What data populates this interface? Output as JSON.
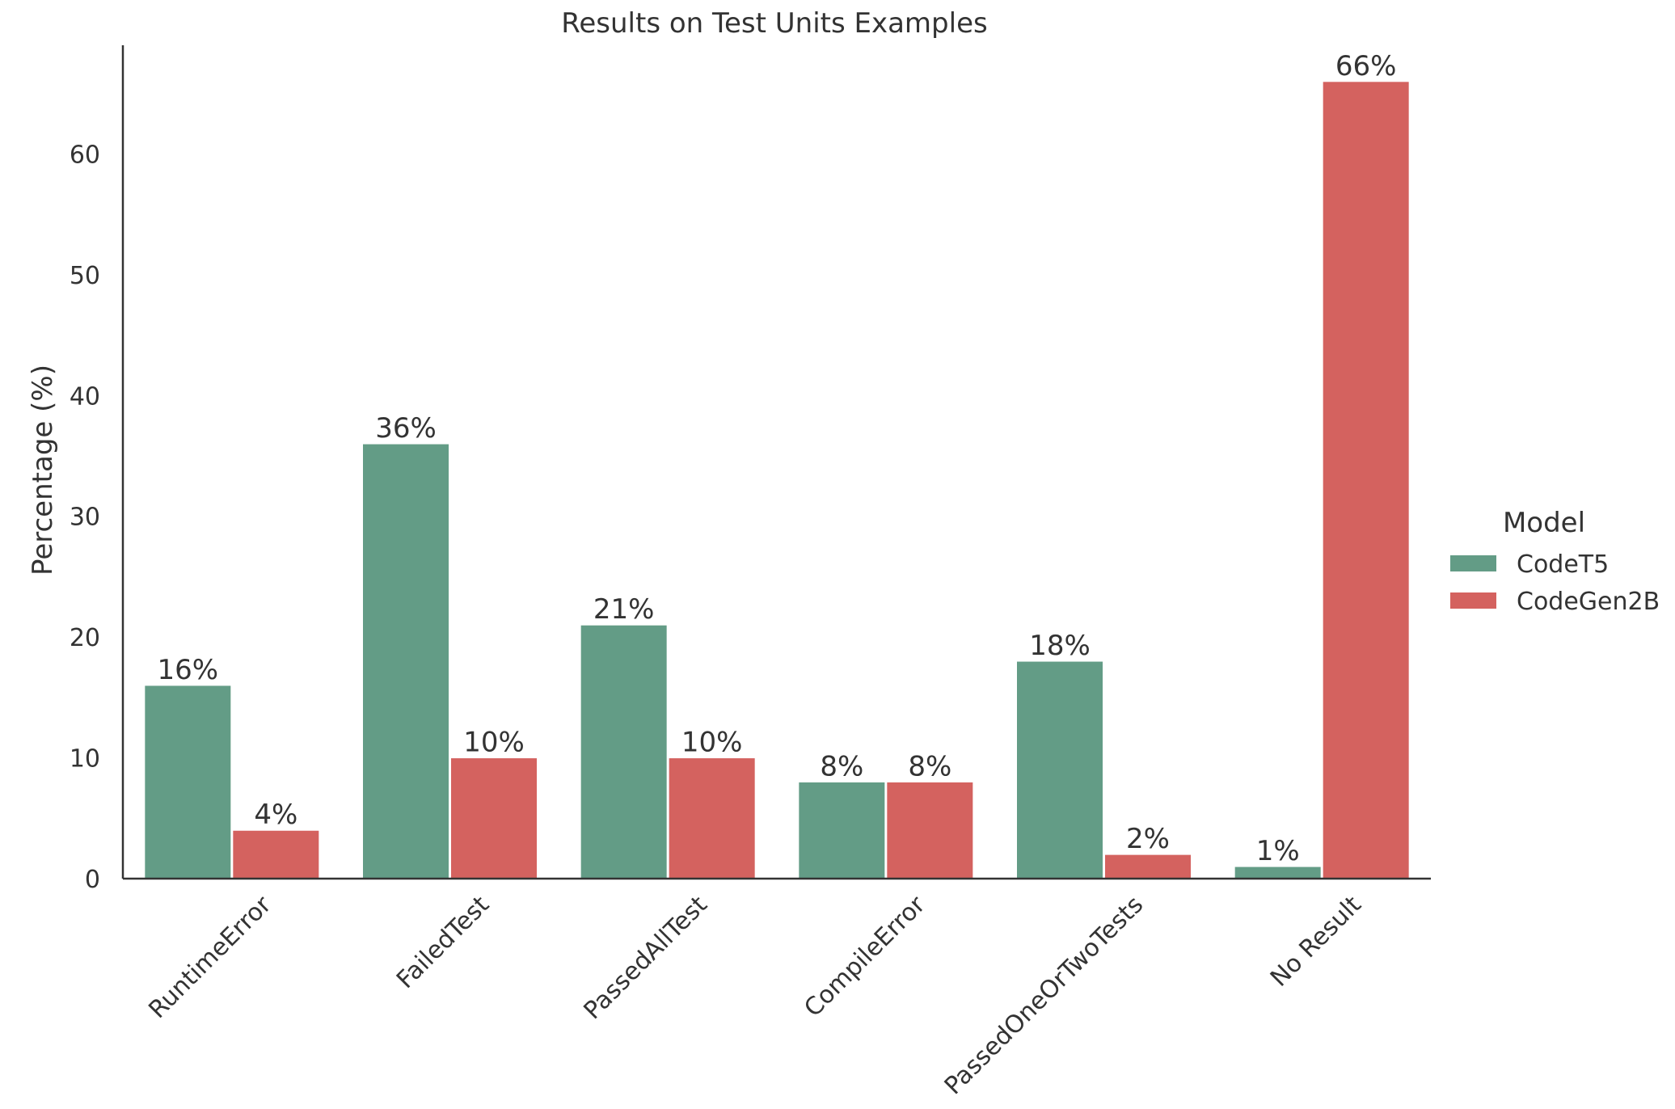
{
  "chart_data": {
    "type": "bar",
    "title": "Results on Test Units Examples",
    "xlabel": "",
    "ylabel": "Percentage (%)",
    "categories": [
      "RuntimeError",
      "FailedTest",
      "PassedAllTest",
      "CompileError",
      "PassedOneOrTwoTests",
      "No Result"
    ],
    "series": [
      {
        "name": "CodeT5",
        "values": [
          16,
          36,
          21,
          8,
          18,
          1
        ],
        "labels": [
          "16%",
          "36%",
          "21%",
          "8%",
          "18%",
          "1%"
        ],
        "color": "#639c86"
      },
      {
        "name": "CodeGen2B",
        "values": [
          4,
          10,
          10,
          8,
          2,
          66
        ],
        "labels": [
          "4%",
          "10%",
          "10%",
          "8%",
          "2%",
          "66%"
        ],
        "color": "#d4625f"
      }
    ],
    "yticks": [
      0,
      10,
      20,
      30,
      40,
      50,
      60
    ],
    "ylim": [
      0,
      69
    ],
    "grid": false,
    "legend": {
      "title": "Model",
      "position": "right"
    }
  }
}
